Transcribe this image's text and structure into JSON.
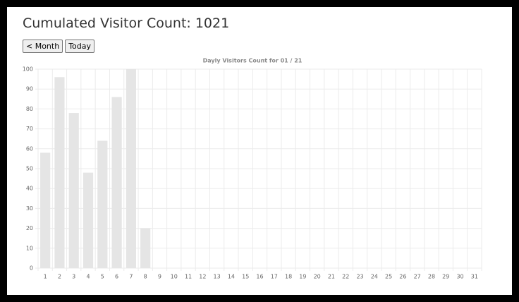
{
  "header": {
    "title": "Cumulated Visitor Count: 1021"
  },
  "buttons": [
    "< Month",
    "Today"
  ],
  "chart_data": {
    "type": "bar",
    "title": "Dayly Visitors Count for 01 / 21",
    "categories": [
      "1",
      "2",
      "3",
      "4",
      "5",
      "6",
      "7",
      "8",
      "9",
      "10",
      "11",
      "12",
      "13",
      "14",
      "15",
      "16",
      "17",
      "18",
      "19",
      "20",
      "21",
      "22",
      "23",
      "24",
      "25",
      "26",
      "27",
      "28",
      "29",
      "30",
      "31"
    ],
    "values": [
      58,
      96,
      78,
      48,
      64,
      86,
      100,
      20,
      0,
      0,
      0,
      0,
      0,
      0,
      0,
      0,
      0,
      0,
      0,
      0,
      0,
      0,
      0,
      0,
      0,
      0,
      0,
      0,
      0,
      0,
      0
    ],
    "color": "#e5e5e5",
    "ylim": [
      0,
      100
    ],
    "yticks": [
      0,
      10,
      20,
      30,
      40,
      50,
      60,
      70,
      80,
      90,
      100
    ],
    "grid": true
  }
}
